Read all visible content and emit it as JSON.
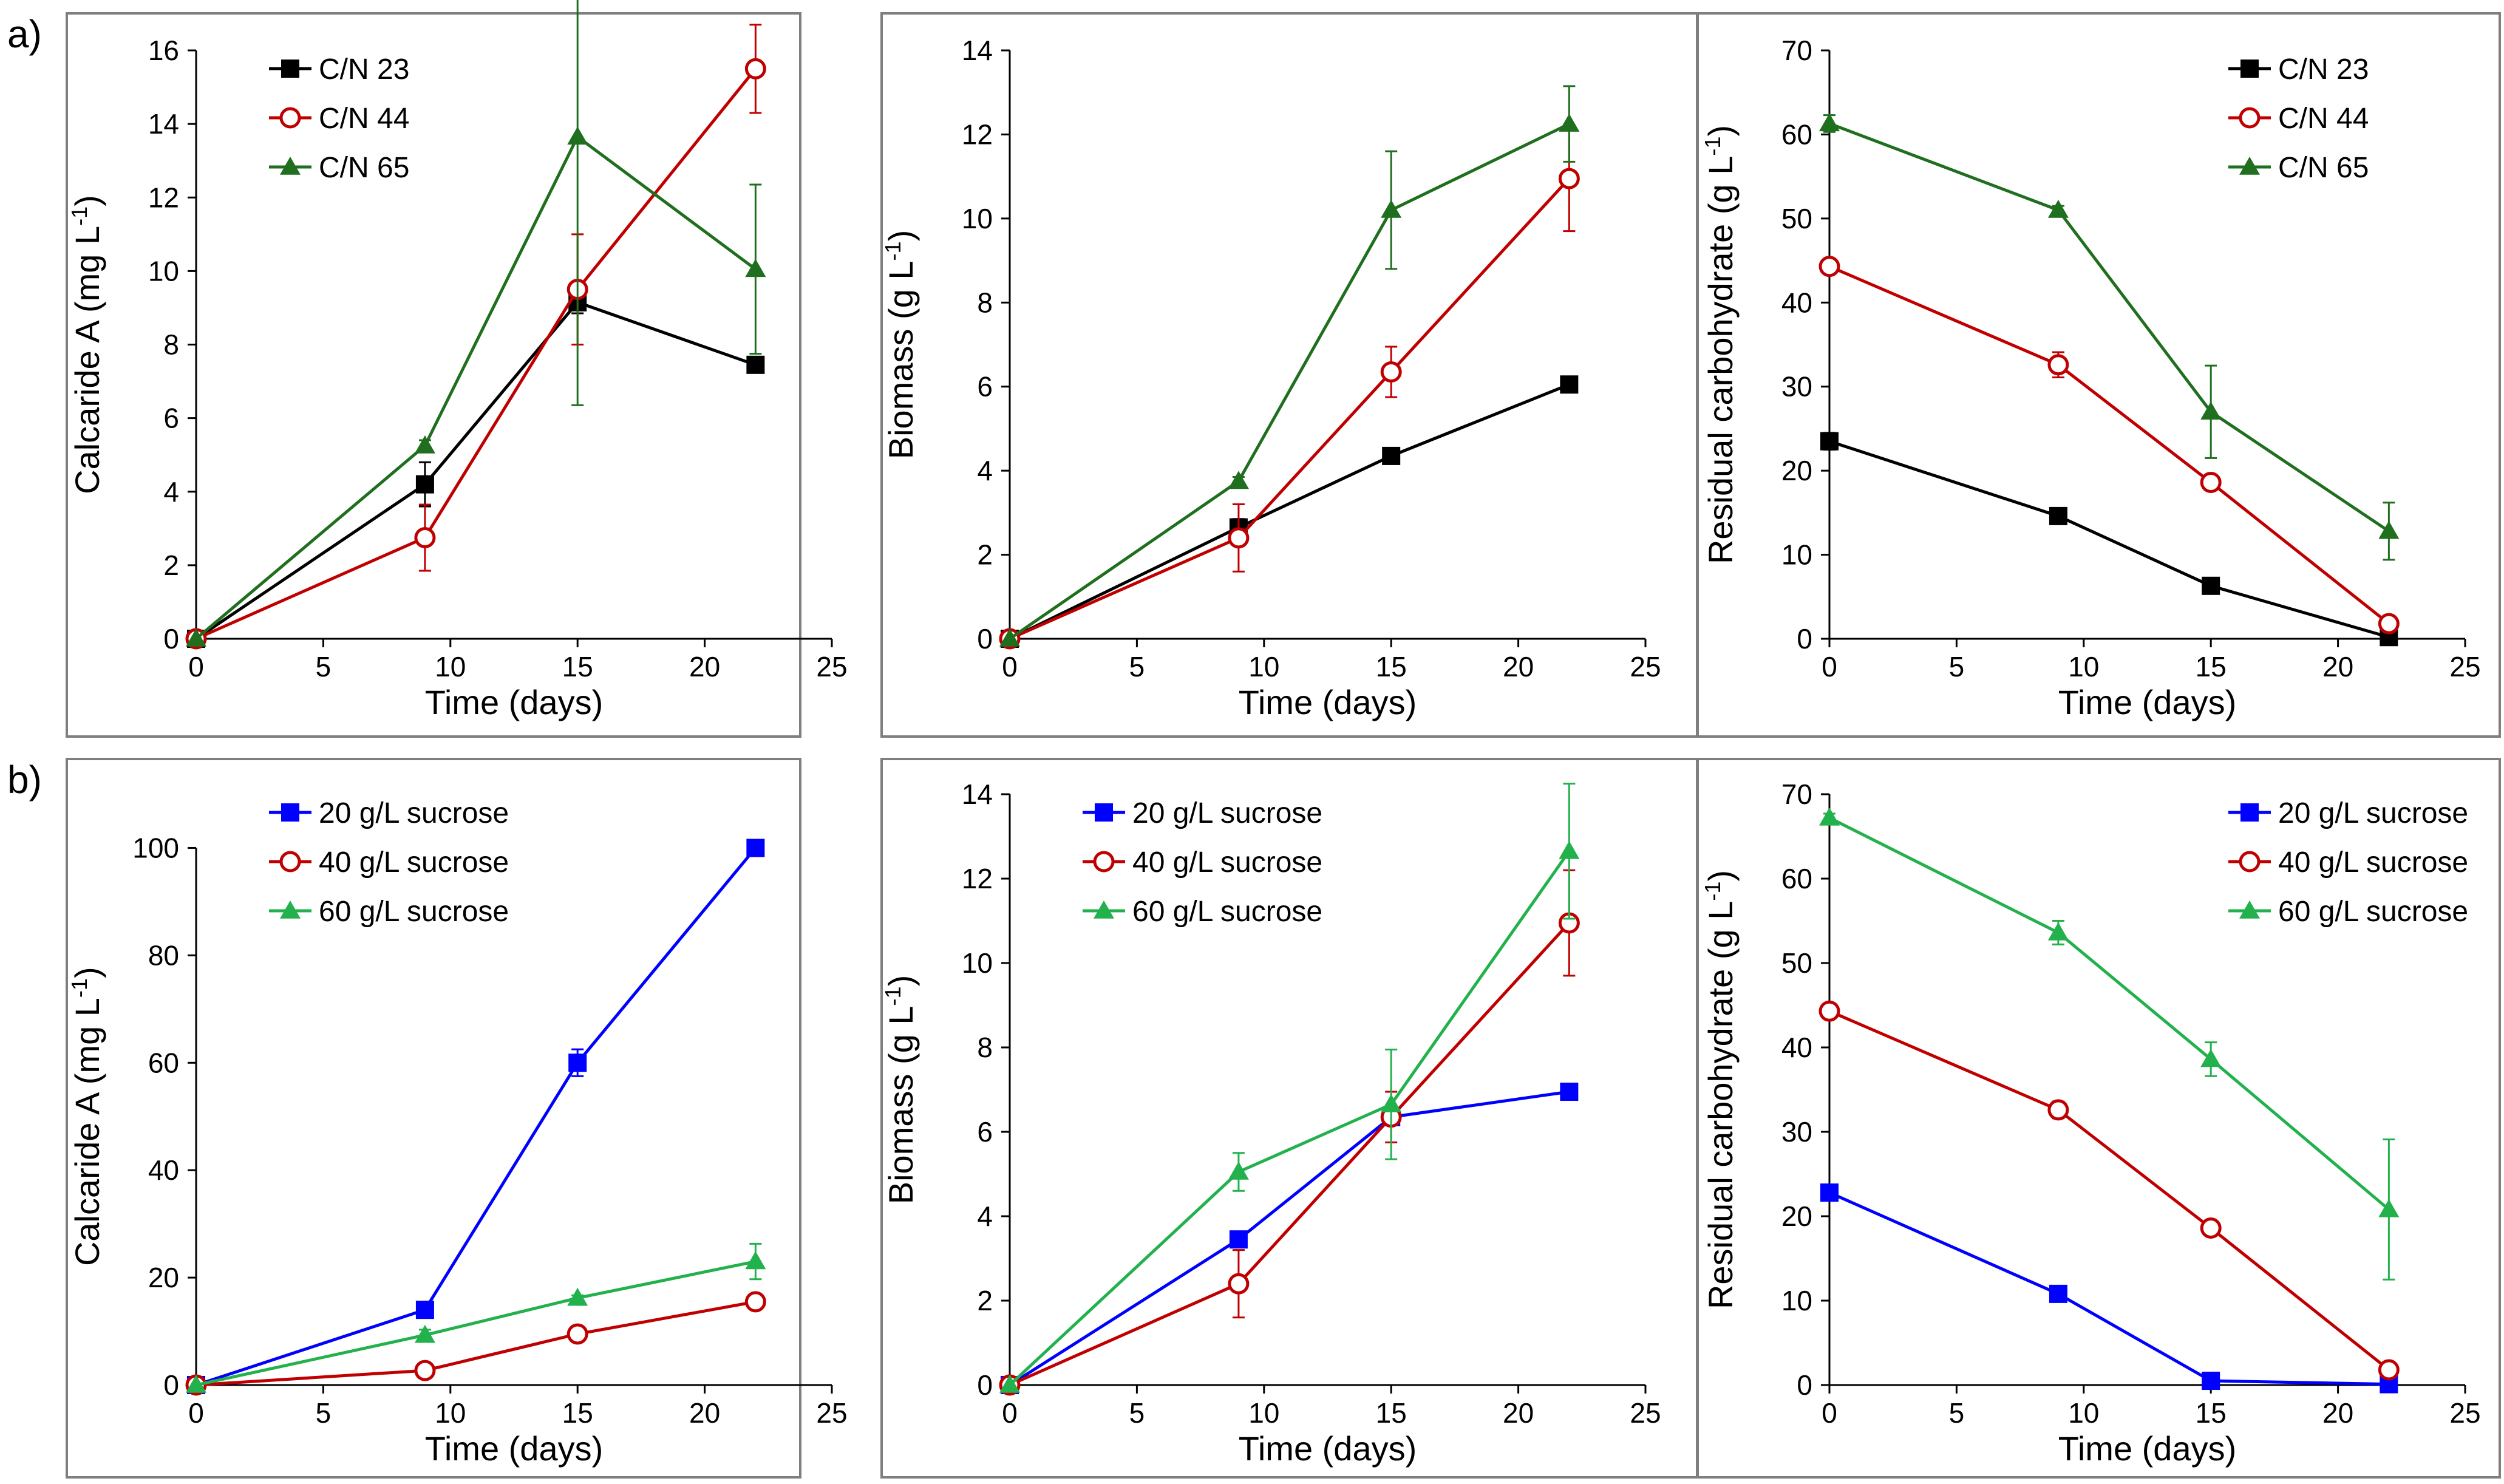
{
  "figure": {
    "row_labels": [
      "a)",
      "b)"
    ],
    "colors": {
      "cn23": "#000000",
      "cn44": "#C00000",
      "cn65": "#1F6F1F",
      "s20": "#0000FF",
      "s40": "#C00000",
      "s60": "#22B14C",
      "frame": "#7F7F7F"
    }
  },
  "chart_data": [
    {
      "type": "line",
      "row_label": "a)",
      "ylabel_main": "Calcaride A (mg L",
      "ylabel_sup": "-1",
      "ylabel_tail": ")",
      "xlabel": "Time (days)",
      "xlim": [
        0,
        25
      ],
      "xticks": [
        0,
        5,
        10,
        15,
        20,
        25
      ],
      "ylim": [
        0,
        16
      ],
      "yticks": [
        0,
        2,
        4,
        6,
        8,
        10,
        12,
        14,
        16
      ],
      "legend_position": "top-left",
      "series": [
        {
          "name": "C/N 23",
          "marker": "square",
          "color": "#000000",
          "x": [
            0,
            9,
            15,
            22
          ],
          "y": [
            0,
            4.2,
            9.15,
            7.45
          ],
          "err": [
            0,
            0.6,
            0.3,
            0.2
          ]
        },
        {
          "name": "C/N 44",
          "marker": "circle",
          "color": "#C00000",
          "x": [
            0,
            9,
            15,
            22
          ],
          "y": [
            0,
            2.75,
            9.5,
            15.5
          ],
          "err": [
            0,
            0.9,
            1.5,
            1.2
          ]
        },
        {
          "name": "C/N 65",
          "marker": "triangle",
          "color": "#1F6F1F",
          "x": [
            0,
            9,
            15,
            22
          ],
          "y": [
            0,
            5.25,
            13.65,
            10.05
          ],
          "err": [
            0,
            0.15,
            7.3,
            2.3
          ]
        }
      ]
    },
    {
      "type": "line",
      "row_label": "a)",
      "ylabel_main": "Biomass (g L",
      "ylabel_sup": "-1",
      "ylabel_tail": ")",
      "xlabel": "Time (days)",
      "xlim": [
        0,
        25
      ],
      "xticks": [
        0,
        5,
        10,
        15,
        20,
        25
      ],
      "ylim": [
        0,
        14
      ],
      "yticks": [
        0,
        2,
        4,
        6,
        8,
        10,
        12,
        14
      ],
      "legend_position": "none",
      "series": [
        {
          "name": "C/N 23",
          "marker": "square",
          "color": "#000000",
          "x": [
            0,
            9,
            15,
            22
          ],
          "y": [
            0,
            2.65,
            4.35,
            6.05
          ],
          "err": [
            0,
            0.2,
            0.1,
            0.1
          ]
        },
        {
          "name": "C/N 44",
          "marker": "circle",
          "color": "#C00000",
          "x": [
            0,
            9,
            15,
            22
          ],
          "y": [
            0,
            2.4,
            6.35,
            10.95
          ],
          "err": [
            0,
            0.8,
            0.6,
            1.25
          ]
        },
        {
          "name": "C/N 65",
          "marker": "triangle",
          "color": "#1F6F1F",
          "x": [
            0,
            9,
            15,
            22
          ],
          "y": [
            0,
            3.75,
            10.2,
            12.25
          ],
          "err": [
            0,
            0.1,
            1.4,
            0.9
          ]
        }
      ]
    },
    {
      "type": "line",
      "row_label": "a)",
      "ylabel_main": "Residual carbohydrate (g L",
      "ylabel_sup": "-1",
      "ylabel_tail": ")",
      "xlabel": "Time (days)",
      "xlim": [
        0,
        25
      ],
      "xticks": [
        0,
        5,
        10,
        15,
        20,
        25
      ],
      "ylim": [
        0,
        70
      ],
      "yticks": [
        0,
        10,
        20,
        30,
        40,
        50,
        60,
        70
      ],
      "legend_position": "top-right",
      "series": [
        {
          "name": "C/N 23",
          "marker": "square",
          "color": "#000000",
          "x": [
            0,
            9,
            15,
            22
          ],
          "y": [
            23.5,
            14.6,
            6.3,
            0.2
          ],
          "err": [
            1.0,
            0.5,
            0.5,
            0.2
          ]
        },
        {
          "name": "C/N 44",
          "marker": "circle",
          "color": "#C00000",
          "x": [
            0,
            9,
            15,
            22
          ],
          "y": [
            44.3,
            32.6,
            18.6,
            1.8
          ],
          "err": [
            0.5,
            1.5,
            0.5,
            0.3
          ]
        },
        {
          "name": "C/N 65",
          "marker": "triangle",
          "color": "#1F6F1F",
          "x": [
            0,
            9,
            15,
            22
          ],
          "y": [
            61.3,
            51.0,
            27.0,
            12.8
          ],
          "err": [
            1.0,
            0.5,
            5.5,
            3.4
          ]
        }
      ]
    },
    {
      "type": "line",
      "row_label": "b)",
      "ylabel_main": "Calcaride A (mg L",
      "ylabel_sup": "-1",
      "ylabel_tail": ")",
      "xlabel": "Time (days)",
      "xlim": [
        0,
        25
      ],
      "xticks": [
        0,
        5,
        10,
        15,
        20,
        25
      ],
      "ylim": [
        0,
        110
      ],
      "yticks": [
        0,
        20,
        40,
        60,
        80,
        100
      ],
      "legend_position": "top-left",
      "series": [
        {
          "name": "20 g/L sucrose",
          "marker": "square",
          "color": "#0000FF",
          "x": [
            0,
            9,
            15,
            22
          ],
          "y": [
            0,
            14,
            60,
            100
          ],
          "err": [
            0,
            0.5,
            2.5,
            0.5
          ]
        },
        {
          "name": "40 g/L sucrose",
          "marker": "circle",
          "color": "#C00000",
          "x": [
            0,
            9,
            15,
            22
          ],
          "y": [
            0,
            2.7,
            9.5,
            15.5
          ],
          "err": [
            0,
            0.5,
            0.5,
            0.5
          ]
        },
        {
          "name": "60 g/L sucrose",
          "marker": "triangle",
          "color": "#22B14C",
          "x": [
            0,
            9,
            15,
            22
          ],
          "y": [
            0,
            9.3,
            16.2,
            23
          ],
          "err": [
            0,
            1.0,
            0.5,
            3.3
          ]
        }
      ]
    },
    {
      "type": "line",
      "row_label": "b)",
      "ylabel_main": "Biomass (g L",
      "ylabel_sup": "-1",
      "ylabel_tail": ")",
      "xlabel": "Time (days)",
      "xlim": [
        0,
        25
      ],
      "xticks": [
        0,
        5,
        10,
        15,
        20,
        25
      ],
      "ylim": [
        0,
        14
      ],
      "yticks": [
        0,
        2,
        4,
        6,
        8,
        10,
        12,
        14
      ],
      "legend_position": "top-left",
      "series": [
        {
          "name": "20 g/L sucrose",
          "marker": "square",
          "color": "#0000FF",
          "x": [
            0,
            9,
            15,
            22
          ],
          "y": [
            0,
            3.45,
            6.35,
            6.95
          ],
          "err": [
            0,
            0.15,
            0.1,
            0.1
          ]
        },
        {
          "name": "40 g/L sucrose",
          "marker": "circle",
          "color": "#C00000",
          "x": [
            0,
            9,
            15,
            22
          ],
          "y": [
            0,
            2.4,
            6.35,
            10.95
          ],
          "err": [
            0,
            0.8,
            0.6,
            1.25
          ]
        },
        {
          "name": "60 g/L sucrose",
          "marker": "triangle",
          "color": "#22B14C",
          "x": [
            0,
            9,
            15,
            22
          ],
          "y": [
            0,
            5.05,
            6.65,
            12.65
          ],
          "err": [
            0,
            0.45,
            1.3,
            1.6
          ]
        }
      ]
    },
    {
      "type": "line",
      "row_label": "b)",
      "ylabel_main": "Residual carbohydrate (g L",
      "ylabel_sup": "-1",
      "ylabel_tail": ")",
      "xlabel": "Time (days)",
      "xlim": [
        0,
        25
      ],
      "xticks": [
        0,
        5,
        10,
        15,
        20,
        25
      ],
      "ylim": [
        0,
        70
      ],
      "yticks": [
        0,
        10,
        20,
        30,
        40,
        50,
        60,
        70
      ],
      "legend_position": "top-right",
      "series": [
        {
          "name": "20 g/L sucrose",
          "marker": "square",
          "color": "#0000FF",
          "x": [
            0,
            9,
            15,
            22
          ],
          "y": [
            22.8,
            10.8,
            0.5,
            0.1
          ],
          "err": [
            0.3,
            0.3,
            0.3,
            0.1
          ]
        },
        {
          "name": "40 g/L sucrose",
          "marker": "circle",
          "color": "#C00000",
          "x": [
            0,
            9,
            15,
            22
          ],
          "y": [
            44.3,
            32.6,
            18.6,
            1.8
          ],
          "err": [
            0.5,
            1.0,
            0.5,
            0.3
          ]
        },
        {
          "name": "60 g/L sucrose",
          "marker": "triangle",
          "color": "#22B14C",
          "x": [
            0,
            9,
            15,
            22
          ],
          "y": [
            67.2,
            53.6,
            38.6,
            20.8
          ],
          "err": [
            0.5,
            1.4,
            2.0,
            8.3
          ]
        }
      ]
    }
  ]
}
